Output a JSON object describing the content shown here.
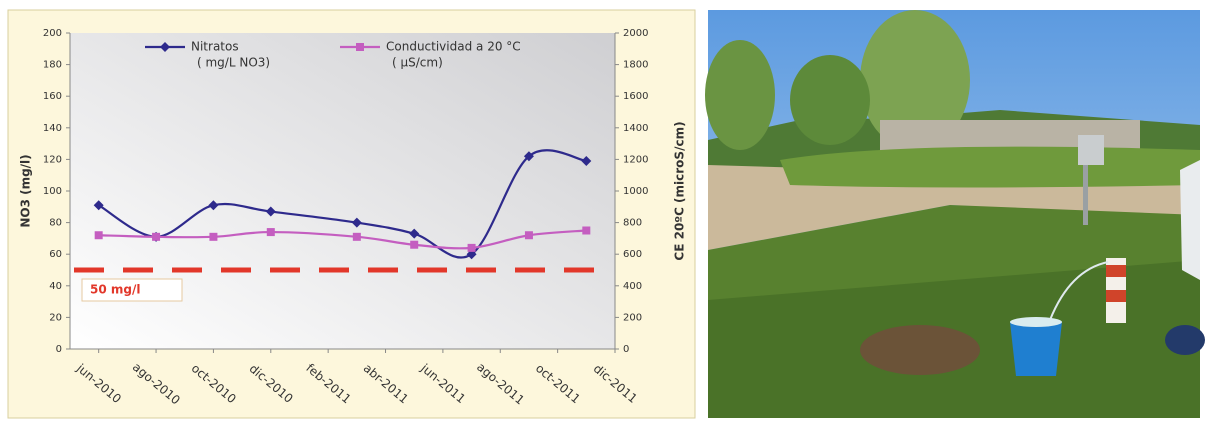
{
  "chart_data": {
    "type": "line",
    "x": [
      "2010-06",
      "2010-08",
      "2010-10",
      "2010-12",
      "2011-03",
      "2011-05",
      "2011-07",
      "2011-09",
      "2011-11"
    ],
    "xlim": [
      "2010-05",
      "2011-12"
    ],
    "xticks": [
      {
        "value": "2010-06",
        "label": "jun-2010"
      },
      {
        "value": "2010-08",
        "label": "ago-2010"
      },
      {
        "value": "2010-10",
        "label": "oct-2010"
      },
      {
        "value": "2010-12",
        "label": "dic-2010"
      },
      {
        "value": "2011-02",
        "label": "feb-2011"
      },
      {
        "value": "2011-04",
        "label": "abr-2011"
      },
      {
        "value": "2011-06",
        "label": "jun-2011"
      },
      {
        "value": "2011-08",
        "label": "ago-2011"
      },
      {
        "value": "2011-10",
        "label": "oct-2011"
      },
      {
        "value": "2011-12",
        "label": "dic-2011"
      }
    ],
    "ylabel": "NO3 (mg/l)",
    "y2label": "CE 20ºC (microS/cm)",
    "ylim": [
      0,
      200
    ],
    "yticks": [
      0,
      20,
      40,
      60,
      80,
      100,
      120,
      140,
      160,
      180,
      200
    ],
    "y2lim": [
      0,
      2000
    ],
    "y2ticks": [
      0,
      200,
      400,
      600,
      800,
      1000,
      1200,
      1400,
      1600,
      1800,
      2000
    ],
    "grid": false,
    "series": [
      {
        "name": "Nitratos",
        "unit": "( mg/L NO3)",
        "color": "#2e2a8c",
        "marker": "diamond",
        "values": [
          91,
          71,
          91,
          87,
          80,
          73,
          60,
          122,
          119
        ]
      },
      {
        "name": "Conductividad a 20 °C",
        "unit": "( µS/cm)",
        "color": "#c45ec0",
        "marker": "square",
        "axis": "y2",
        "values": [
          720,
          710,
          710,
          740,
          710,
          660,
          640,
          720,
          750
        ]
      }
    ],
    "threshold": {
      "value": 50,
      "label": "50 mg/l",
      "color": "#e2372a"
    }
  }
}
